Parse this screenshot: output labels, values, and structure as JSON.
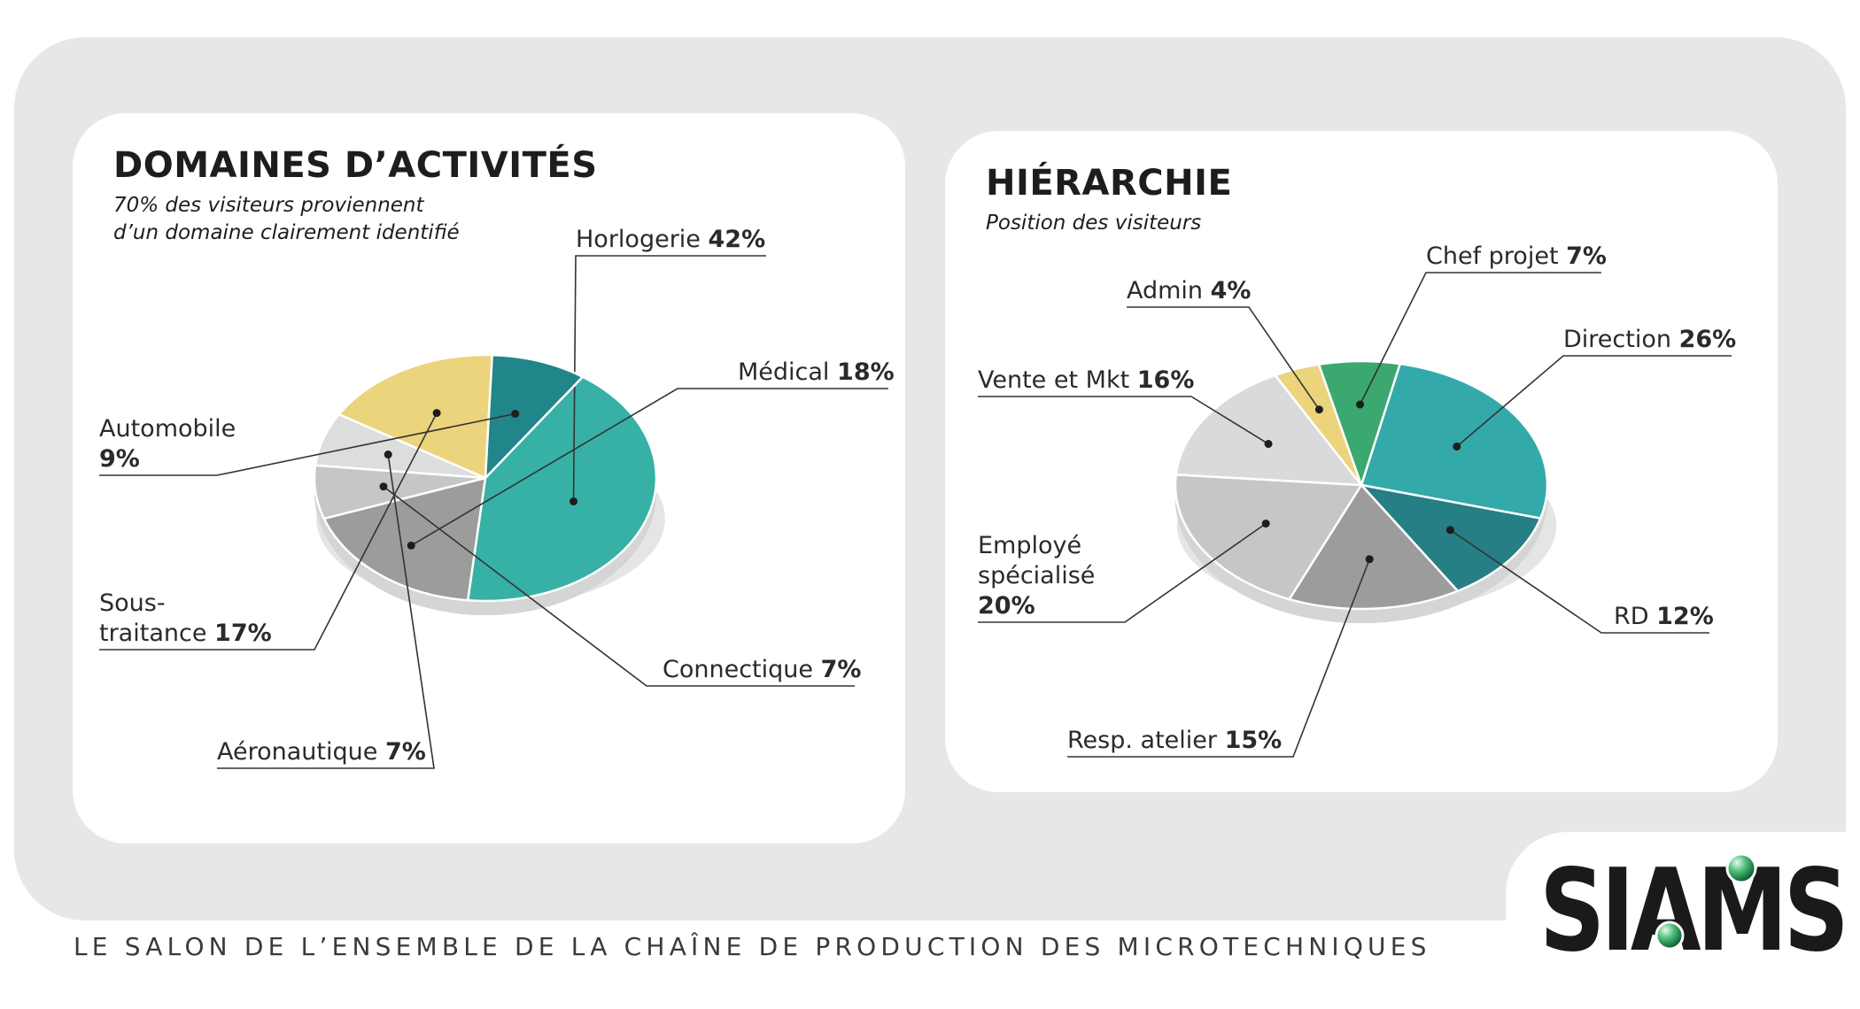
{
  "chart_data": [
    {
      "type": "pie",
      "title": "DOMAINES D’ACTIVITÉS",
      "subtitle_lines": [
        "70% des visiteurs proviennent",
        "d’un domaine clairement identifié"
      ],
      "slices": [
        {
          "name": "Horlogerie",
          "name_lines": [
            "Horlogerie"
          ],
          "value": 42,
          "value_label": "42%",
          "color": "#37b1a5"
        },
        {
          "name": "Médical",
          "name_lines": [
            "Médical"
          ],
          "value": 18,
          "value_label": "18%",
          "color": "#9c9c9c"
        },
        {
          "name": "Connectique",
          "name_lines": [
            "Connectique"
          ],
          "value": 7,
          "value_label": "7%",
          "color": "#c4c6c8"
        },
        {
          "name": "Aéronautique",
          "name_lines": [
            "Aéronautique"
          ],
          "value": 7,
          "value_label": "7%",
          "color": "#dcdddd"
        },
        {
          "name": "Sous-traitance",
          "name_lines": [
            "Sous-",
            "traitance"
          ],
          "value": 17,
          "value_label": "17%",
          "color": "#ecd47d"
        },
        {
          "name": "Automobile",
          "name_lines": [
            "Automobile"
          ],
          "value": 9,
          "value_label": "9%",
          "value_on_new_line": true,
          "color": "#21868a"
        }
      ]
    },
    {
      "type": "pie",
      "title": "HIÉRARCHIE",
      "subtitle_lines": [
        "Position des visiteurs"
      ],
      "slices": [
        {
          "name": "Direction",
          "name_lines": [
            "Direction"
          ],
          "value": 26,
          "value_label": "26%",
          "color": "#33a9aa"
        },
        {
          "name": "RD",
          "name_lines": [
            "RD"
          ],
          "value": 12,
          "value_label": "12%",
          "color": "#267f85"
        },
        {
          "name": "Resp. atelier",
          "name_lines": [
            "Resp. atelier"
          ],
          "value": 15,
          "value_label": "15%",
          "color": "#9c9c9c"
        },
        {
          "name": "Employé spécialisé",
          "name_lines": [
            "Employé",
            "spécialisé"
          ],
          "value": 20,
          "value_label": "20%",
          "value_on_new_line": true,
          "color": "#c4c6c8"
        },
        {
          "name": "Vente et Mkt",
          "name_lines": [
            "Vente et Mkt"
          ],
          "value": 16,
          "value_label": "16%",
          "color": "#d9dadb"
        },
        {
          "name": "Admin",
          "name_lines": [
            "Admin"
          ],
          "value": 4,
          "value_label": "4%",
          "color": "#ecd47d"
        },
        {
          "name": "Chef projet",
          "name_lines": [
            "Chef projet"
          ],
          "value": 7,
          "value_label": "7%",
          "color": "#3ba86f"
        }
      ]
    }
  ],
  "footer": {
    "tagline": "LE SALON DE L’ENSEMBLE DE LA CHAÎNE DE PRODUCTION DES MICROTECHNIQUES",
    "logo_text": "SIAMS"
  },
  "colors": {
    "background_panel": "#e8e7e7",
    "card": "#ffffff",
    "text": "#1d1d1b",
    "leader_line": "#333333",
    "logo": "#1a1a1a"
  }
}
